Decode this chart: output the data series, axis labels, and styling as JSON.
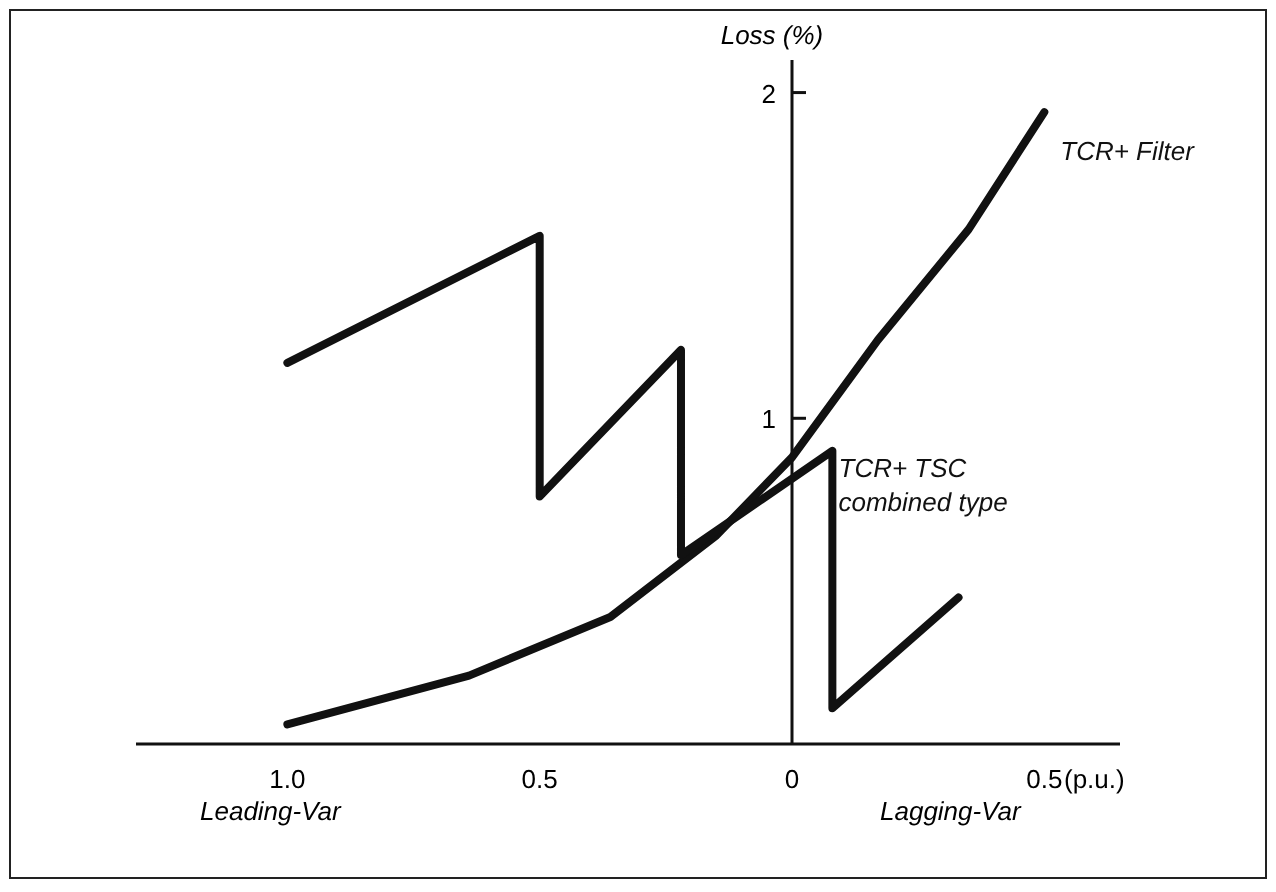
{
  "chart_data": {
    "type": "line",
    "ylabel": "Loss (%)",
    "xlim": [
      -1.3,
      0.65
    ],
    "ylim": [
      0,
      2.1
    ],
    "xticks": [
      {
        "value": -1,
        "label": "1.0"
      },
      {
        "value": -0.5,
        "label": "0.5"
      },
      0,
      {
        "value": 0.5,
        "label": "0.5"
      }
    ],
    "yticks": [
      1,
      2
    ],
    "grid": false,
    "line_style": "solid",
    "series": [
      {
        "name": "TCR+ Filter",
        "color": "#111111",
        "x": [
          -1,
          -0.64,
          -0.36,
          -0.15,
          0,
          0.17,
          0.35,
          0.5
        ],
        "values": [
          0.06,
          0.21,
          0.39,
          0.64,
          0.88,
          1.24,
          1.58,
          1.94
        ]
      },
      {
        "name": "TCR+ TSC\ncombined type",
        "color": "#111111",
        "x": [
          -1,
          -0.5,
          -0.5,
          -0.22,
          -0.22,
          0.08,
          0.08,
          0.33
        ],
        "values": [
          1.17,
          1.56,
          0.76,
          1.21,
          0.58,
          0.9,
          0.11,
          0.45
        ]
      }
    ],
    "annotations": [
      "(p.u.)",
      "Leading-Var",
      "Lagging-Var"
    ]
  }
}
